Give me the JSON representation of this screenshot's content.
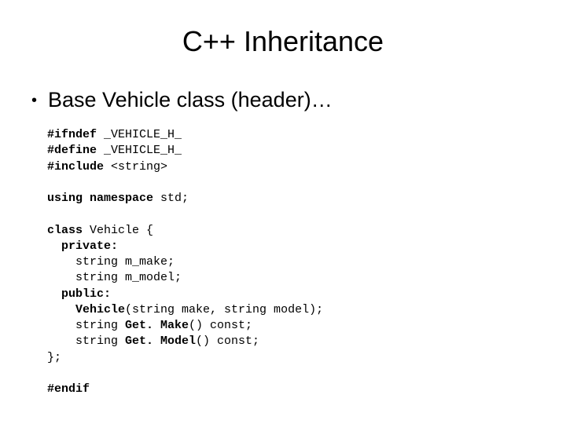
{
  "title": "C++ Inheritance",
  "bullet": "Base Vehicle class (header)…",
  "code": {
    "l1a": "#ifndef",
    "l1b": " _VEHICLE_H_",
    "l2a": "#define",
    "l2b": " _VEHICLE_H_",
    "l3a": "#include",
    "l3b": " <string>",
    "blank1": " ",
    "l4a": "using namespace",
    "l4b": " std;",
    "blank2": " ",
    "l5a": "class",
    "l5b": " Vehicle {",
    "l6a": "  private:",
    "l7": "    string m_make;",
    "l8": "    string m_model;",
    "l9a": "  public:",
    "l10a": "    Vehicle",
    "l10b": "(string make, string model);",
    "l11a": "    string ",
    "l11b": "Get. Make",
    "l11c": "() const;",
    "l12a": "    string ",
    "l12b": "Get. Model",
    "l12c": "() const;",
    "l13": "};",
    "blank3": " ",
    "l14": "#endif"
  },
  "style": {
    "background": "#ffffff",
    "text_color": "#000000",
    "title_fontsize": 36,
    "bullet_fontsize": 27,
    "code_fontsize": 15,
    "code_font": "Courier New",
    "body_font": "Arial"
  }
}
